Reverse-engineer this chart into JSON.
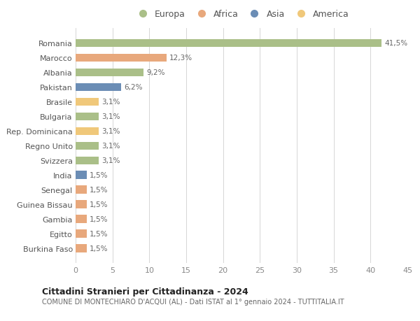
{
  "countries": [
    "Romania",
    "Marocco",
    "Albania",
    "Pakistan",
    "Brasile",
    "Bulgaria",
    "Rep. Dominicana",
    "Regno Unito",
    "Svizzera",
    "India",
    "Senegal",
    "Guinea Bissau",
    "Gambia",
    "Egitto",
    "Burkina Faso"
  ],
  "values": [
    41.5,
    12.3,
    9.2,
    6.2,
    3.1,
    3.1,
    3.1,
    3.1,
    3.1,
    1.5,
    1.5,
    1.5,
    1.5,
    1.5,
    1.5
  ],
  "colors": [
    "#AABF88",
    "#E8A87C",
    "#AABF88",
    "#6B8DB5",
    "#F0C87A",
    "#AABF88",
    "#F0C87A",
    "#AABF88",
    "#AABF88",
    "#6B8DB5",
    "#E8A87C",
    "#E8A87C",
    "#E8A87C",
    "#E8A87C",
    "#E8A87C"
  ],
  "labels": [
    "41,5%",
    "12,3%",
    "9,2%",
    "6,2%",
    "3,1%",
    "3,1%",
    "3,1%",
    "3,1%",
    "3,1%",
    "1,5%",
    "1,5%",
    "1,5%",
    "1,5%",
    "1,5%",
    "1,5%"
  ],
  "legend_labels": [
    "Europa",
    "Africa",
    "Asia",
    "America"
  ],
  "legend_colors": [
    "#AABF88",
    "#E8A87C",
    "#6B8DB5",
    "#F0C87A"
  ],
  "title": "Cittadini Stranieri per Cittadinanza - 2024",
  "subtitle": "COMUNE DI MONTECHIARO D'ACQUI (AL) - Dati ISTAT al 1° gennaio 2024 - TUTTITALIA.IT",
  "xlim": [
    0,
    45
  ],
  "xticks": [
    0,
    5,
    10,
    15,
    20,
    25,
    30,
    35,
    40,
    45
  ],
  "background_color": "#ffffff",
  "bar_height": 0.55,
  "grid_color": "#d0d0d0"
}
